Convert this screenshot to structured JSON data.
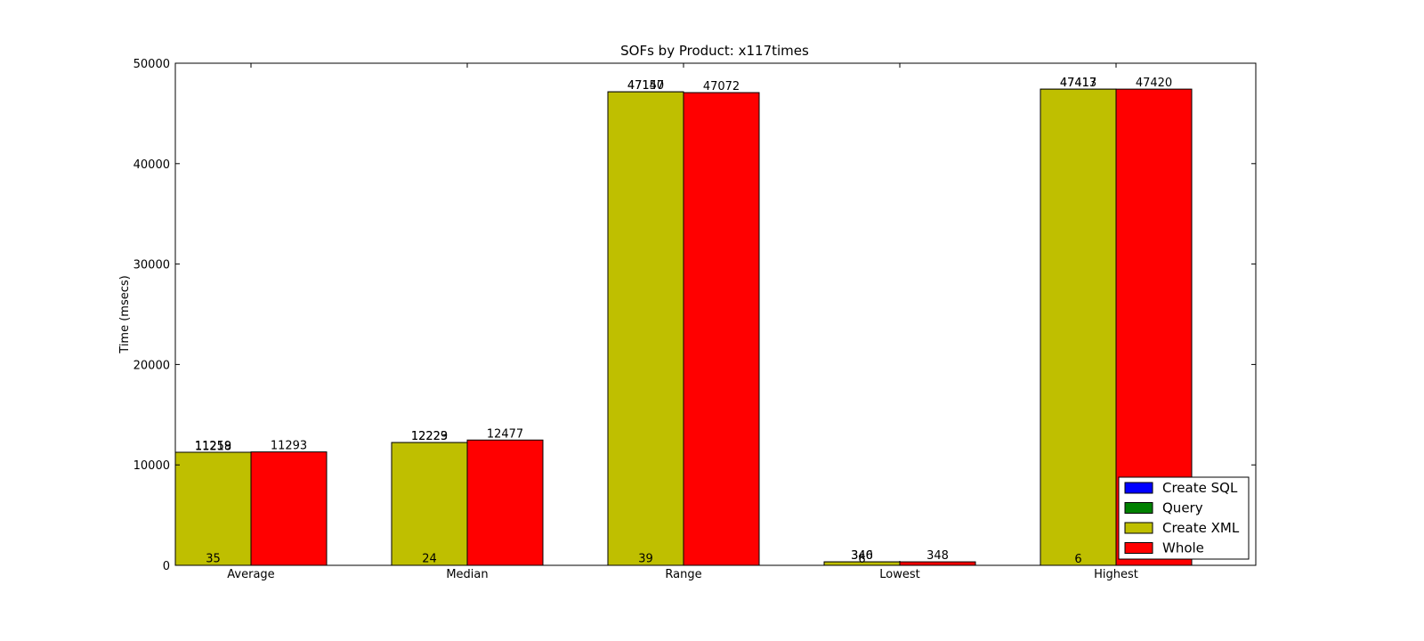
{
  "chart_data": {
    "type": "bar",
    "title": "SOFs by Product: x117times",
    "xlabel": "",
    "ylabel": "Time (msecs)",
    "ylim": [
      0,
      50000
    ],
    "yticks": [
      0,
      10000,
      20000,
      30000,
      40000,
      50000
    ],
    "categories": [
      "Average",
      "Median",
      "Range",
      "Lowest",
      "Highest"
    ],
    "legend_position": "lower-right",
    "series": [
      {
        "name": "Create SQL",
        "color": "#0000ff",
        "values": [
          35,
          24,
          39,
          6,
          6
        ],
        "labels": [
          "35",
          "24",
          "39",
          "6",
          "6"
        ],
        "slot": 0
      },
      {
        "name": "Query",
        "color": "#008000",
        "values": [
          11218,
          12223,
          47147,
          340,
          47413
        ],
        "labels": [
          "11218",
          "12223",
          "47147",
          "340",
          "47413"
        ],
        "slot": 0
      },
      {
        "name": "Create XML",
        "color": "#bfbf00",
        "values": [
          11259,
          12229,
          47150,
          346,
          47417
        ],
        "labels": [
          "11259",
          "12229",
          "47150",
          "346",
          "47417"
        ],
        "slot": 0
      },
      {
        "name": "Whole",
        "color": "#ff0000",
        "values": [
          11293,
          12477,
          47072,
          348,
          47420
        ],
        "labels": [
          "11293",
          "12477",
          "47072",
          "348",
          "47420"
        ],
        "slot": 1
      }
    ]
  }
}
